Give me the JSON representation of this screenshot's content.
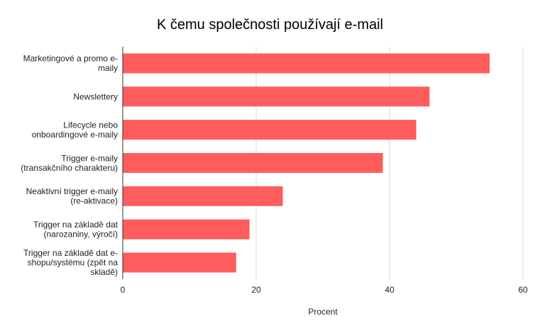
{
  "chart_data": {
    "type": "bar",
    "orientation": "horizontal",
    "title": "K čemu společnosti používají e-mail",
    "xlabel": "Procent",
    "ylabel": "",
    "categories": [
      [
        "Marketingové a promo e-",
        "maily"
      ],
      [
        "Newslettery"
      ],
      [
        "Lifecycle nebo",
        "onboardingové e-maily"
      ],
      [
        "Trigger e-maily",
        "(transakčního charakteru)"
      ],
      [
        "Neaktivní trigger e-maily",
        "(re-aktivace)"
      ],
      [
        "Trigger na základě dat",
        "(narozaniny, výročí)"
      ],
      [
        "Trigger na základě dat e-",
        "shopu/systému (zpět na",
        "skladě)"
      ]
    ],
    "values": [
      55,
      46,
      44,
      39,
      24,
      19,
      17
    ],
    "xlim": [
      0,
      60
    ],
    "xticks": [
      "0",
      "20",
      "40",
      "60"
    ],
    "grid": true,
    "bar_color": "#ff5d5d"
  }
}
